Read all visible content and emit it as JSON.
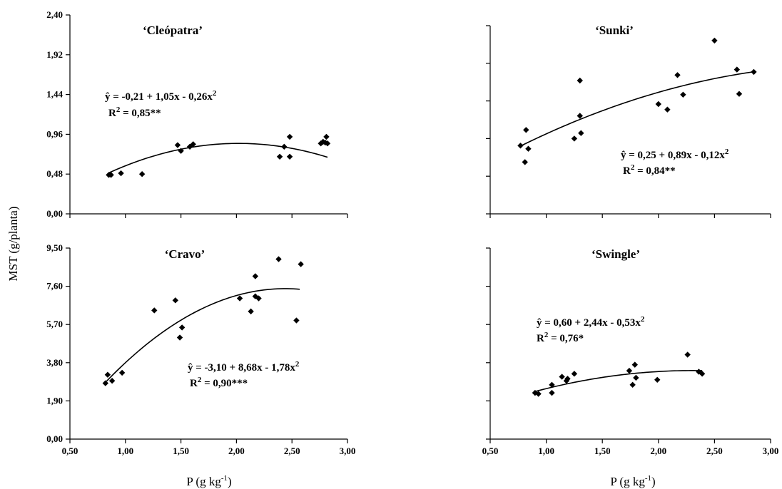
{
  "figure": {
    "ylabel": "MST (g/planta)",
    "xlabel_main": "P (g kg",
    "xlabel_sup": "-1",
    "xlabel_close": ")"
  },
  "chart_data": [
    {
      "type": "scatter",
      "title": "‘Cleópatra’",
      "equation_main": "= -0,21 + 1,05x - 0,26x",
      "equation_hat": "ŷ",
      "equation_sup": "2",
      "r2_main": "R",
      "r2_sup": "2",
      "r2_rest": " = 0,85**",
      "coef": [
        -0.21,
        1.05,
        -0.26
      ],
      "fit_range": [
        0.85,
        2.82
      ],
      "xlim": [
        0.5,
        3.0
      ],
      "ylim": [
        0.0,
        2.4
      ],
      "xticks": [
        0.5,
        1.0,
        1.5,
        2.0,
        2.5,
        3.0
      ],
      "yticks": [
        0.0,
        0.48,
        0.96,
        1.44,
        1.92,
        2.4
      ],
      "xtick_labels": [],
      "ytick_labels": [
        "0,00",
        "0,48",
        "0,96",
        "1,44",
        "1,92",
        "2,40"
      ],
      "points": [
        [
          0.85,
          0.47
        ],
        [
          0.87,
          0.47
        ],
        [
          0.96,
          0.49
        ],
        [
          1.15,
          0.48
        ],
        [
          1.47,
          0.83
        ],
        [
          1.5,
          0.76
        ],
        [
          1.58,
          0.81
        ],
        [
          1.61,
          0.84
        ],
        [
          2.39,
          0.69
        ],
        [
          2.43,
          0.81
        ],
        [
          2.48,
          0.93
        ],
        [
          2.48,
          0.69
        ],
        [
          2.76,
          0.85
        ],
        [
          2.78,
          0.87
        ],
        [
          2.8,
          0.86
        ],
        [
          2.81,
          0.93
        ],
        [
          2.82,
          0.85
        ]
      ]
    },
    {
      "type": "scatter",
      "title": "‘Sunki’",
      "equation_main": "= 0,25 + 0,89x - 0,12x",
      "equation_hat": "ŷ",
      "equation_sup": "2",
      "r2_main": "R",
      "r2_sup": "2",
      "r2_rest": " = 0,84**",
      "coef": [
        0.25,
        0.89,
        -0.12
      ],
      "fit_range": [
        0.77,
        2.85
      ],
      "xlim": [
        0.5,
        3.0
      ],
      "ylim": [
        0.0,
        2.4
      ],
      "xticks": [
        0.5,
        1.0,
        1.5,
        2.0,
        2.5,
        3.0
      ],
      "yticks": [
        0.0,
        0.48,
        0.96,
        1.44,
        1.92,
        2.4
      ],
      "xtick_labels": [],
      "ytick_labels": [],
      "points": [
        [
          0.77,
          0.87
        ],
        [
          0.81,
          0.66
        ],
        [
          0.82,
          1.07
        ],
        [
          0.84,
          0.83
        ],
        [
          1.25,
          0.96
        ],
        [
          1.3,
          1.7
        ],
        [
          1.3,
          1.25
        ],
        [
          1.31,
          1.03
        ],
        [
          2.0,
          1.4
        ],
        [
          2.08,
          1.33
        ],
        [
          2.17,
          1.77
        ],
        [
          2.22,
          1.52
        ],
        [
          2.5,
          2.21
        ],
        [
          2.7,
          1.84
        ],
        [
          2.72,
          1.53
        ],
        [
          2.85,
          1.81
        ]
      ]
    },
    {
      "type": "scatter",
      "title": "‘Cravo’",
      "equation_main": "= -3,10 + 8,68x - 1,78x",
      "equation_hat": "ŷ",
      "equation_sup": "2",
      "r2_main": "R",
      "r2_sup": "2",
      "r2_rest": " = 0,90***",
      "coef": [
        -3.1,
        8.68,
        -1.78
      ],
      "fit_range": [
        0.83,
        2.57
      ],
      "xlim": [
        0.5,
        3.0
      ],
      "ylim": [
        0.0,
        9.5
      ],
      "xticks": [
        0.5,
        1.0,
        1.5,
        2.0,
        2.5,
        3.0
      ],
      "yticks": [
        0.0,
        1.9,
        3.8,
        5.7,
        7.6,
        9.5
      ],
      "xtick_labels": [
        "0,50",
        "1,00",
        "1,50",
        "2,00",
        "2,50",
        "3,00"
      ],
      "ytick_labels": [
        "0,00",
        "1,90",
        "3,80",
        "5,70",
        "7,60",
        "9,50"
      ],
      "points": [
        [
          0.82,
          2.78
        ],
        [
          0.84,
          3.2
        ],
        [
          0.88,
          2.9
        ],
        [
          0.97,
          3.3
        ],
        [
          1.26,
          6.4
        ],
        [
          1.45,
          6.9
        ],
        [
          1.49,
          5.05
        ],
        [
          1.51,
          5.55
        ],
        [
          2.03,
          7.0
        ],
        [
          2.13,
          6.35
        ],
        [
          2.17,
          8.1
        ],
        [
          2.17,
          7.1
        ],
        [
          2.2,
          7.0
        ],
        [
          2.38,
          8.95
        ],
        [
          2.54,
          5.9
        ],
        [
          2.58,
          8.7
        ]
      ]
    },
    {
      "type": "scatter",
      "title": "‘Swingle’",
      "equation_main": "= 0,60 + 2,44x - 0,53x",
      "equation_hat": "ŷ",
      "equation_sup": "2",
      "r2_main": "R",
      "r2_sup": "2",
      "r2_rest": " = 0,76*",
      "coef": [
        0.6,
        2.44,
        -0.53
      ],
      "fit_range": [
        0.9,
        2.39
      ],
      "xlim": [
        0.5,
        3.0
      ],
      "ylim": [
        0.0,
        9.5
      ],
      "xticks": [
        0.5,
        1.0,
        1.5,
        2.0,
        2.5,
        3.0
      ],
      "yticks": [
        0.0,
        1.9,
        3.8,
        5.7,
        7.6,
        9.5
      ],
      "xtick_labels": [
        "0,50",
        "1,00",
        "1,50",
        "2,00",
        "2,50",
        "3,00"
      ],
      "ytick_labels": [],
      "points": [
        [
          0.9,
          2.3
        ],
        [
          0.93,
          2.25
        ],
        [
          1.05,
          2.3
        ],
        [
          1.05,
          2.7
        ],
        [
          1.14,
          3.1
        ],
        [
          1.18,
          2.9
        ],
        [
          1.19,
          3.0
        ],
        [
          1.25,
          3.25
        ],
        [
          1.74,
          3.4
        ],
        [
          1.77,
          2.7
        ],
        [
          1.79,
          3.7
        ],
        [
          1.8,
          3.05
        ],
        [
          1.99,
          2.95
        ],
        [
          2.26,
          4.2
        ],
        [
          2.36,
          3.35
        ],
        [
          2.39,
          3.25
        ]
      ]
    }
  ]
}
